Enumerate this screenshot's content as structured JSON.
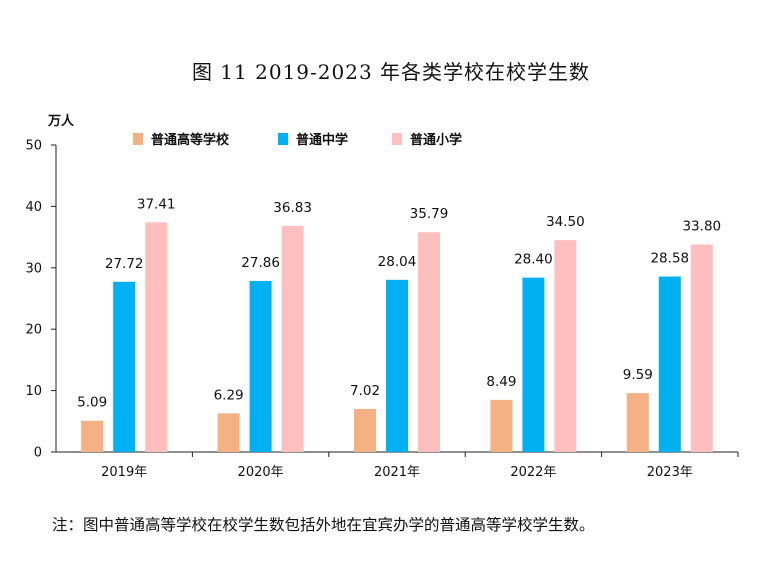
{
  "chart_data": {
    "type": "bar",
    "title": "图 11   2019-2023 年各类学校在校学生数",
    "ylabel": "万人",
    "xlabel": "",
    "ylim": [
      0,
      50
    ],
    "yticks": [
      "0",
      "10",
      "20",
      "30",
      "40",
      "50"
    ],
    "categories": [
      "2019年",
      "2020年",
      "2021年",
      "2022年",
      "2023年"
    ],
    "series": [
      {
        "name": "普通高等学校",
        "color": "#F4B183",
        "values": [
          5.09,
          6.29,
          7.02,
          8.49,
          9.59
        ],
        "labels": [
          "5.09",
          "6.29",
          "7.02",
          "8.49",
          "9.59"
        ]
      },
      {
        "name": "普通中学",
        "color": "#00B0F0",
        "values": [
          27.72,
          27.86,
          28.04,
          28.4,
          28.58
        ],
        "labels": [
          "27.72",
          "27.86",
          "28.04",
          "28.40",
          "28.58"
        ]
      },
      {
        "name": "普通小学",
        "color": "#FFBFBF",
        "values": [
          37.41,
          36.83,
          35.79,
          34.5,
          33.8
        ],
        "labels": [
          "37.41",
          "36.83",
          "35.79",
          "34.50",
          "33.80"
        ]
      }
    ],
    "legend_position": "top",
    "grid": false
  },
  "note": "注：图中普通高等学校在校学生数包括外地在宜宾办学的普通高等学校学生数。"
}
